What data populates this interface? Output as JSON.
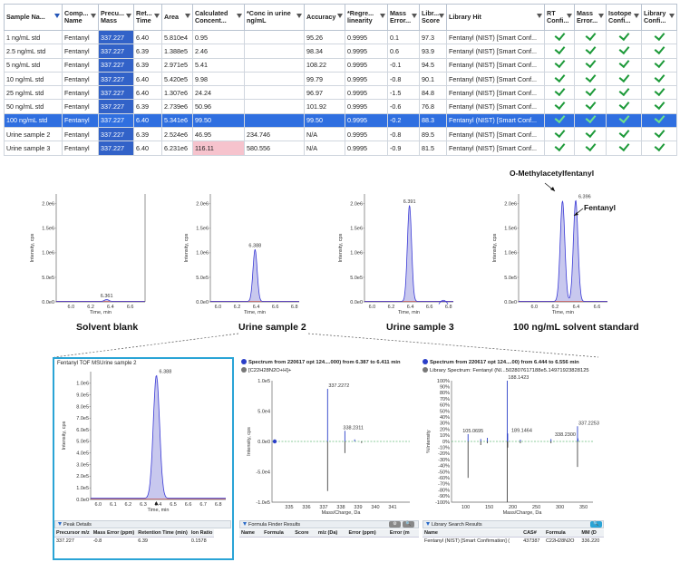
{
  "table": {
    "columns": [
      {
        "key": "sample",
        "label": "Sample Na..."
      },
      {
        "key": "compound",
        "label": "Comp... Name"
      },
      {
        "key": "mass",
        "label": "Precu... Mass"
      },
      {
        "key": "rt",
        "label": "Ret... Time"
      },
      {
        "key": "area",
        "label": "Area"
      },
      {
        "key": "calc",
        "label": "Calculated Concent..."
      },
      {
        "key": "conc",
        "label": "*Conc in urine ng/mL"
      },
      {
        "key": "accuracy",
        "label": "Accuracy"
      },
      {
        "key": "linearity",
        "label": "*Regre... linearity"
      },
      {
        "key": "masserr",
        "label": "Mass Error..."
      },
      {
        "key": "libscore",
        "label": "Libr... Score"
      },
      {
        "key": "libhit",
        "label": "Library Hit"
      },
      {
        "key": "rtconf",
        "label": "RT Confi..."
      },
      {
        "key": "massconf",
        "label": "Mass Error..."
      },
      {
        "key": "isoconf",
        "label": "Isotope Confi..."
      },
      {
        "key": "libconf",
        "label": "Library Confi..."
      }
    ],
    "rows": [
      {
        "sample": "1 ng/mL std",
        "compound": "Fentanyl",
        "mass": "337.227",
        "rt": "6.40",
        "area": "5.810e4",
        "calc": "0.95",
        "conc": "",
        "accuracy": "95.26",
        "linearity": "0.9995",
        "masserr": "0.1",
        "libscore": "97.3",
        "libhit": "Fentanyl (NIST) [Smart Conf..."
      },
      {
        "sample": "2.5 ng/mL std",
        "compound": "Fentanyl",
        "mass": "337.227",
        "rt": "6.39",
        "area": "1.388e5",
        "calc": "2.46",
        "conc": "",
        "accuracy": "98.34",
        "linearity": "0.9995",
        "masserr": "0.6",
        "libscore": "93.9",
        "libhit": "Fentanyl (NIST) [Smart Conf..."
      },
      {
        "sample": "5 ng/mL std",
        "compound": "Fentanyl",
        "mass": "337.227",
        "rt": "6.39",
        "area": "2.971e5",
        "calc": "5.41",
        "conc": "",
        "accuracy": "108.22",
        "linearity": "0.9995",
        "masserr": "-0.1",
        "libscore": "94.5",
        "libhit": "Fentanyl (NIST) [Smart Conf..."
      },
      {
        "sample": "10 ng/mL std",
        "compound": "Fentanyl",
        "mass": "337.227",
        "rt": "6.40",
        "area": "5.420e5",
        "calc": "9.98",
        "conc": "",
        "accuracy": "99.79",
        "linearity": "0.9995",
        "masserr": "-0.8",
        "libscore": "90.1",
        "libhit": "Fentanyl (NIST) [Smart Conf..."
      },
      {
        "sample": "25 ng/mL std",
        "compound": "Fentanyl",
        "mass": "337.227",
        "rt": "6.40",
        "area": "1.307e6",
        "calc": "24.24",
        "conc": "",
        "accuracy": "96.97",
        "linearity": "0.9995",
        "masserr": "-1.5",
        "libscore": "84.8",
        "libhit": "Fentanyl (NIST) [Smart Conf..."
      },
      {
        "sample": "50 ng/mL std",
        "compound": "Fentanyl",
        "mass": "337.227",
        "rt": "6.39",
        "area": "2.739e6",
        "calc": "50.96",
        "conc": "",
        "accuracy": "101.92",
        "linearity": "0.9995",
        "masserr": "-0.6",
        "libscore": "76.8",
        "libhit": "Fentanyl (NIST) [Smart Conf..."
      },
      {
        "sample": "100 ng/mL std",
        "compound": "Fentanyl",
        "mass": "337.227",
        "rt": "6.40",
        "area": "5.341e6",
        "calc": "99.50",
        "conc": "",
        "accuracy": "99.50",
        "linearity": "0.9995",
        "masserr": "-0.2",
        "libscore": "88.3",
        "libhit": "Fentanyl (NIST) [Smart Conf...",
        "selected": true
      },
      {
        "sample": "Urine sample 2",
        "compound": "Fentanyl",
        "mass": "337.227",
        "rt": "6.39",
        "area": "2.524e6",
        "calc": "46.95",
        "conc": "234.746",
        "accuracy": "N/A",
        "linearity": "0.9995",
        "masserr": "-0.8",
        "libscore": "89.5",
        "libhit": "Fentanyl (NIST) [Smart Conf..."
      },
      {
        "sample": "Urine sample 3",
        "compound": "Fentanyl",
        "mass": "337.227",
        "rt": "6.40",
        "area": "6.231e6",
        "calc": "116.11",
        "conc": "580.556",
        "accuracy": "N/A",
        "linearity": "0.9995",
        "masserr": "-0.9",
        "libscore": "81.5",
        "libhit": "Fentanyl (NIST) [Smart Conf...",
        "highlight": "calc"
      }
    ]
  },
  "colors": {
    "accent": "#3262c8",
    "selected_row": "#2f6fe0",
    "pink": "#f6c3cd",
    "check": "#1e9a3a",
    "peak_fill": "#c8c8ee",
    "trace": "#3b3bd6",
    "panel_border": "#2aa4d6"
  },
  "xic_common": {
    "ylabel": "Intensity, cps",
    "xlabel": "Time, min",
    "yticks": [
      "0.0e0",
      "5.0e5",
      "1.0e6",
      "1.5e6",
      "2.0e6"
    ]
  },
  "chromatograms": [
    {
      "caption": "Solvent blank",
      "peak_label": "6.361",
      "xticks": [
        "6.0",
        "6.2",
        "6.4",
        "6.6"
      ]
    },
    {
      "caption": "Urine sample 2",
      "peak_label": "6.388",
      "xticks": [
        "6.0",
        "6.2",
        "6.4",
        "6.6",
        "6.8"
      ]
    },
    {
      "caption": "Urine sample 3",
      "peak_label": "6.391",
      "xticks": [
        "6.0",
        "6.2",
        "6.4",
        "6.6",
        "6.8"
      ]
    },
    {
      "caption": "100 ng/mL solvent standard",
      "peak_label": "6.396",
      "xticks": [
        "6.0",
        "6.2",
        "6.4",
        "6.6"
      ],
      "annot1": "O-Methylacetylfentanyl",
      "annot2": "Fentanyl"
    }
  ],
  "chart_data": [
    {
      "type": "line",
      "xlabel": "Time, min",
      "ylabel": "Intensity, cps",
      "ylim": [
        0,
        2200000
      ],
      "peaks": [
        {
          "rt": 6.361,
          "height": 40000
        }
      ]
    },
    {
      "type": "line",
      "xlabel": "Time, min",
      "ylabel": "Intensity, cps",
      "ylim": [
        0,
        2200000
      ],
      "peaks": [
        {
          "rt": 6.388,
          "height": 1060000
        }
      ]
    },
    {
      "type": "line",
      "xlabel": "Time, min",
      "ylabel": "Intensity, cps",
      "ylim": [
        0,
        2200000
      ],
      "peaks": [
        {
          "rt": 6.391,
          "height": 1960000
        }
      ]
    },
    {
      "type": "line",
      "xlabel": "Time, min",
      "ylabel": "Intensity, cps",
      "ylim": [
        0,
        2200000
      ],
      "peaks": [
        {
          "rt": 6.27,
          "height": 2050000
        },
        {
          "rt": 6.396,
          "height": 2060000
        }
      ]
    },
    {
      "type": "line",
      "title": "Fentanyl TOF MSUrine sample 2",
      "xlabel": "Time, min",
      "ylabel": "Intensity, cps",
      "ylim": [
        0,
        1100000
      ],
      "yticks": [
        "0.0e0",
        "1.0e5",
        "2.0e5",
        "3.0e5",
        "4.0e5",
        "5.0e5",
        "6.0e5",
        "7.0e5",
        "8.0e5",
        "9.0e5",
        "1.0e6"
      ],
      "xticks": [
        "6.0",
        "6.1",
        "6.2",
        "6.3",
        "6.4",
        "6.5",
        "6.6",
        "6.7",
        "6.8"
      ],
      "peaks": [
        {
          "rt": 6.388,
          "height": 1060000
        }
      ]
    },
    {
      "type": "bar",
      "title": "Spectrum from 220617 opt 124....000) from 6.387 to 6.411 min",
      "xlabel": "Mass/Charge, Da",
      "ylabel": "Intensity, cps",
      "xlim": [
        334,
        342
      ],
      "ylim": [
        -120000,
        120000
      ],
      "yticks": [
        "-1.0e5",
        "-5.0e4",
        "0.0e0",
        "5.0e4",
        "1.0e5"
      ],
      "xticks": [
        "335",
        "336",
        "337",
        "338",
        "339",
        "340",
        "341"
      ],
      "peaks_up": [
        {
          "mz": 337.2272,
          "value": 104000
        },
        {
          "mz": 338.2311,
          "value": 21000
        },
        {
          "mz": 338.8,
          "value": 4000
        }
      ],
      "peaks_down": [
        {
          "mz": 337.2272,
          "value": -98000
        },
        {
          "mz": 338.2311,
          "value": -23000
        },
        {
          "mz": 339.2,
          "value": -3000
        }
      ]
    },
    {
      "type": "bar",
      "title": "Spectrum from 220617 opt 124....00) from 6.444 to 6.556 min",
      "xlabel": "Mass/Charge, Da",
      "ylabel": "%Intensity",
      "xlim": [
        70,
        370
      ],
      "ylim": [
        -100,
        100
      ],
      "yticks": [
        "-100%",
        "-90%",
        "-80%",
        "-70%",
        "-60%",
        "-50%",
        "-40%",
        "-30%",
        "-20%",
        "-10%",
        "0%",
        "10%",
        "20%",
        "30%",
        "40%",
        "50%",
        "60%",
        "70%",
        "80%",
        "90%",
        "100%"
      ],
      "xticks": [
        "100",
        "150",
        "200",
        "250",
        "300",
        "350"
      ],
      "peaks_up": [
        {
          "mz": 105.0695,
          "value": 12
        },
        {
          "mz": 188.1423,
          "value": 100
        },
        {
          "mz": 189.1464,
          "value": 13
        },
        {
          "mz": 337.2253,
          "value": 25
        },
        {
          "mz": 146,
          "value": 6
        },
        {
          "mz": 132,
          "value": 4
        },
        {
          "mz": 216,
          "value": 3
        },
        {
          "mz": 281,
          "value": 4
        },
        {
          "mz": 338.23,
          "value": 5
        }
      ],
      "peaks_down": [
        {
          "mz": 105.0695,
          "value": -60
        },
        {
          "mz": 188.1423,
          "value": -100
        },
        {
          "mz": 189.1464,
          "value": -10
        },
        {
          "mz": 337.2253,
          "value": -42
        },
        {
          "mz": 132,
          "value": -6
        },
        {
          "mz": 146,
          "value": -3
        },
        {
          "mz": 216,
          "value": -3
        },
        {
          "mz": 281,
          "value": -3
        }
      ]
    }
  ],
  "zoom_panel": {
    "title": "Fentanyl TOF MSUrine sample 2",
    "peak_label": "6.388"
  },
  "spectrum1": {
    "legend1": "Spectrum from 220617 opt 124....000) from 6.387 to 6.411 min",
    "legend2": "[C22H28N2O+H]+",
    "label_a": "337.2272",
    "label_b": "338.2311",
    "ylabel": "Intensity, cps",
    "xlabel": "Mass/Charge, Da"
  },
  "spectrum2": {
    "legend1": "Spectrum from 220617 opt 124....00) from 6.444 to 6.556 min",
    "legend2": "Library Spectrum: Fentanyl (NI...502807617188e5.14971923828125",
    "labels": [
      "105.0695",
      "188.1423",
      "189.1464",
      "338.2300",
      "337.2253"
    ],
    "ylabel": "%Intensity",
    "xlabel": "Mass/Charge, Da"
  },
  "peak_details": {
    "header": "Peak Details",
    "columns": [
      "Precursor m/z",
      "Mass Error (ppm)",
      "Retention Time (min)",
      "Ion Ratio"
    ],
    "values": [
      "337.227",
      "-0.8",
      "6.39",
      "0.1578"
    ]
  },
  "formula_finder": {
    "header": "Formula Finder Results",
    "columns": [
      "Name",
      "Formula",
      "Score",
      "m/z (Da)",
      "Error (ppm)",
      "Error (m"
    ]
  },
  "library_search": {
    "header": "Library Search Results",
    "columns": [
      "Name",
      "CAS#",
      "Formula",
      "MM (D"
    ],
    "row": [
      "Fentanyl (NIST) [Smart Confirmation] (",
      "437387",
      "C22H28N2O",
      "336.220"
    ]
  }
}
